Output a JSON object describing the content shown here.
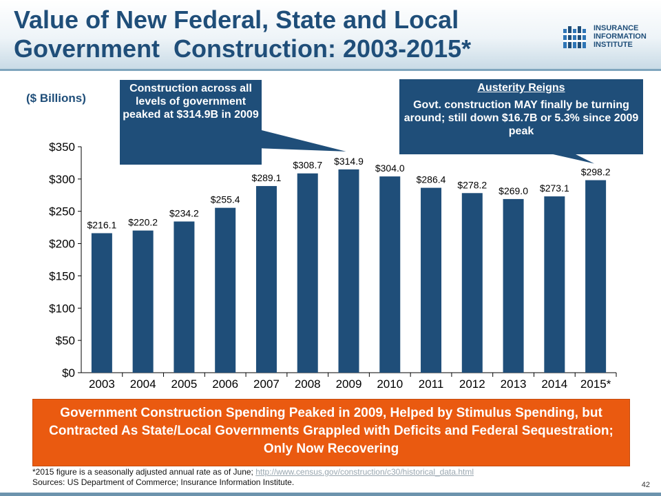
{
  "title": {
    "line1": "Value of New Federal, State and Local",
    "line2": "Government  Construction: 2003-2015*"
  },
  "logo": {
    "line1": "INSURANCE",
    "line2": "INFORMATION",
    "line3": "INSTITUTE"
  },
  "units": "($ Billions)",
  "callout_left": {
    "text": "Construction across all levels of government peaked at $314.9B in 2009"
  },
  "callout_right": {
    "title": "Austerity Reigns",
    "text": "Govt. construction MAY finally be turning around; still down $16.7B or 5.3% since 2009 peak"
  },
  "summary": "Government Construction Spending Peaked in 2009, Helped by Stimulus Spending, but Contracted As State/Local Governments Grappled with Deficits and Federal Sequestration; Only Now Recovering",
  "footnote": {
    "note": "*2015 figure is a seasonally adjusted annual rate as of June; ",
    "link": "http://www.census.gov/construction/c30/historical_data.html",
    "sources": "Sources: US Department of Commerce; Insurance Information Institute."
  },
  "page_number": "42",
  "colors": {
    "bar": "#1f4e79",
    "title": "#1f4e79",
    "callout": "#1f4e79",
    "summary_box": "#ea5a10"
  },
  "chart_data": {
    "type": "bar",
    "categories": [
      "2003",
      "2004",
      "2005",
      "2006",
      "2007",
      "2008",
      "2009",
      "2010",
      "2011",
      "2012",
      "2013",
      "2014",
      "2015*"
    ],
    "values": [
      216.1,
      220.2,
      234.2,
      255.4,
      289.1,
      308.7,
      314.9,
      304.0,
      286.4,
      278.2,
      269.0,
      273.1,
      298.2
    ],
    "data_labels": [
      "$216.1",
      "$220.2",
      "$234.2",
      "$255.4",
      "$289.1",
      "$308.7",
      "$314.9",
      "$304.0",
      "$286.4",
      "$278.2",
      "$269.0",
      "$273.1",
      "$298.2"
    ],
    "ylim": [
      0,
      350
    ],
    "yticks": [
      0,
      50,
      100,
      150,
      200,
      250,
      300,
      350
    ],
    "ytick_labels": [
      "$0",
      "$50",
      "$100",
      "$150",
      "$200",
      "$250",
      "$300",
      "$350"
    ],
    "grid": false,
    "legend": "none"
  }
}
